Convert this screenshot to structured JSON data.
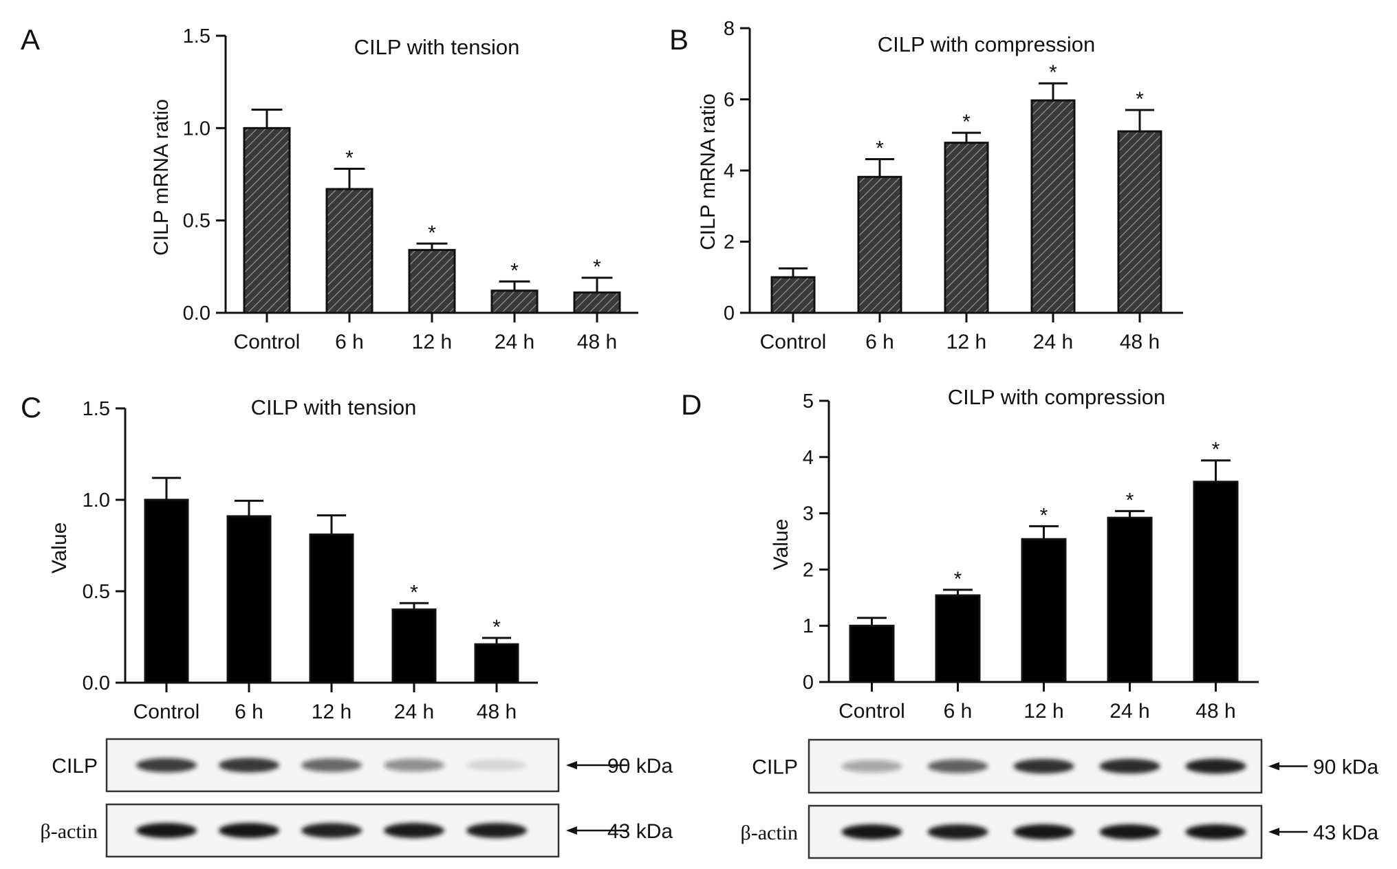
{
  "chart_data": [
    {
      "panel": "A",
      "type": "bar",
      "title": "CILP with tension",
      "ylabel": "CILP mRNA ratio",
      "xlabel": "",
      "categories": [
        "Control",
        "6 h",
        "12 h",
        "24 h",
        "48 h"
      ],
      "values": [
        1.0,
        0.67,
        0.34,
        0.12,
        0.11
      ],
      "errors": [
        0.1,
        0.11,
        0.035,
        0.05,
        0.08
      ],
      "significance": [
        "",
        "*",
        "*",
        "*",
        "*"
      ],
      "ylim": [
        0,
        1.5
      ],
      "yticks": [
        "0.0",
        "0.5",
        "1.0",
        "1.5"
      ],
      "fill": "hatched",
      "fill_color": "#3a3a3a",
      "grid": false,
      "legend": "none"
    },
    {
      "panel": "B",
      "type": "bar",
      "title": "CILP with compression",
      "ylabel": "CILP mRNA ratio",
      "xlabel": "",
      "categories": [
        "Control",
        "6 h",
        "12 h",
        "24 h",
        "48 h"
      ],
      "values": [
        1.0,
        3.82,
        4.78,
        5.97,
        5.1
      ],
      "errors": [
        0.25,
        0.5,
        0.28,
        0.48,
        0.6
      ],
      "significance": [
        "",
        "*",
        "*",
        "*",
        "*"
      ],
      "ylim": [
        0,
        8
      ],
      "yticks": [
        "0",
        "2",
        "4",
        "6",
        "8"
      ],
      "fill": "hatched",
      "fill_color": "#3a3a3a",
      "grid": false,
      "legend": "none"
    },
    {
      "panel": "C",
      "type": "bar",
      "title": "CILP with tension",
      "ylabel": "Value",
      "xlabel": "",
      "categories": [
        "Control",
        "6 h",
        "12 h",
        "24 h",
        "48 h"
      ],
      "values": [
        1.0,
        0.91,
        0.81,
        0.4,
        0.21
      ],
      "errors": [
        0.12,
        0.085,
        0.105,
        0.035,
        0.035
      ],
      "significance": [
        "",
        "",
        "",
        "*",
        "*"
      ],
      "ylim": [
        0,
        1.5
      ],
      "yticks": [
        "0.0",
        "0.5",
        "1.0",
        "1.5"
      ],
      "fill": "solid",
      "fill_color": "#000000",
      "grid": false,
      "legend": "none"
    },
    {
      "panel": "D",
      "type": "bar",
      "title": "CILP with compression",
      "ylabel": "Value",
      "xlabel": "",
      "categories": [
        "Control",
        "6 h",
        "12 h",
        "24 h",
        "48 h"
      ],
      "values": [
        1.0,
        1.54,
        2.54,
        2.92,
        3.56
      ],
      "errors": [
        0.14,
        0.1,
        0.23,
        0.12,
        0.38
      ],
      "significance": [
        "",
        "*",
        "*",
        "*",
        "*"
      ],
      "ylim": [
        0,
        5
      ],
      "yticks": [
        "0",
        "1",
        "2",
        "3",
        "4",
        "5"
      ],
      "fill": "solid",
      "fill_color": "#000000",
      "grid": false,
      "legend": "none"
    }
  ],
  "blots": [
    {
      "panel": "C",
      "rows": [
        {
          "label": "CILP",
          "size": "90 kDa",
          "band_intensity": [
            0.8,
            0.85,
            0.62,
            0.45,
            0.12
          ]
        },
        {
          "label": "β-actin",
          "size": "43 kDa",
          "band_intensity": [
            1.0,
            1.0,
            0.95,
            0.98,
            0.97
          ]
        }
      ]
    },
    {
      "panel": "D",
      "rows": [
        {
          "label": "CILP",
          "size": "90 kDa",
          "band_intensity": [
            0.35,
            0.65,
            0.88,
            0.9,
            0.95
          ]
        },
        {
          "label": "β-actin",
          "size": "43 kDa",
          "band_intensity": [
            1.0,
            0.97,
            1.0,
            1.0,
            1.0
          ]
        }
      ]
    }
  ],
  "colors": {
    "axis": "#111111",
    "hatch_fill": "#3a3a3a",
    "solid_fill": "#000000",
    "blot_background": "#f4f4f4",
    "band": "#141414"
  }
}
